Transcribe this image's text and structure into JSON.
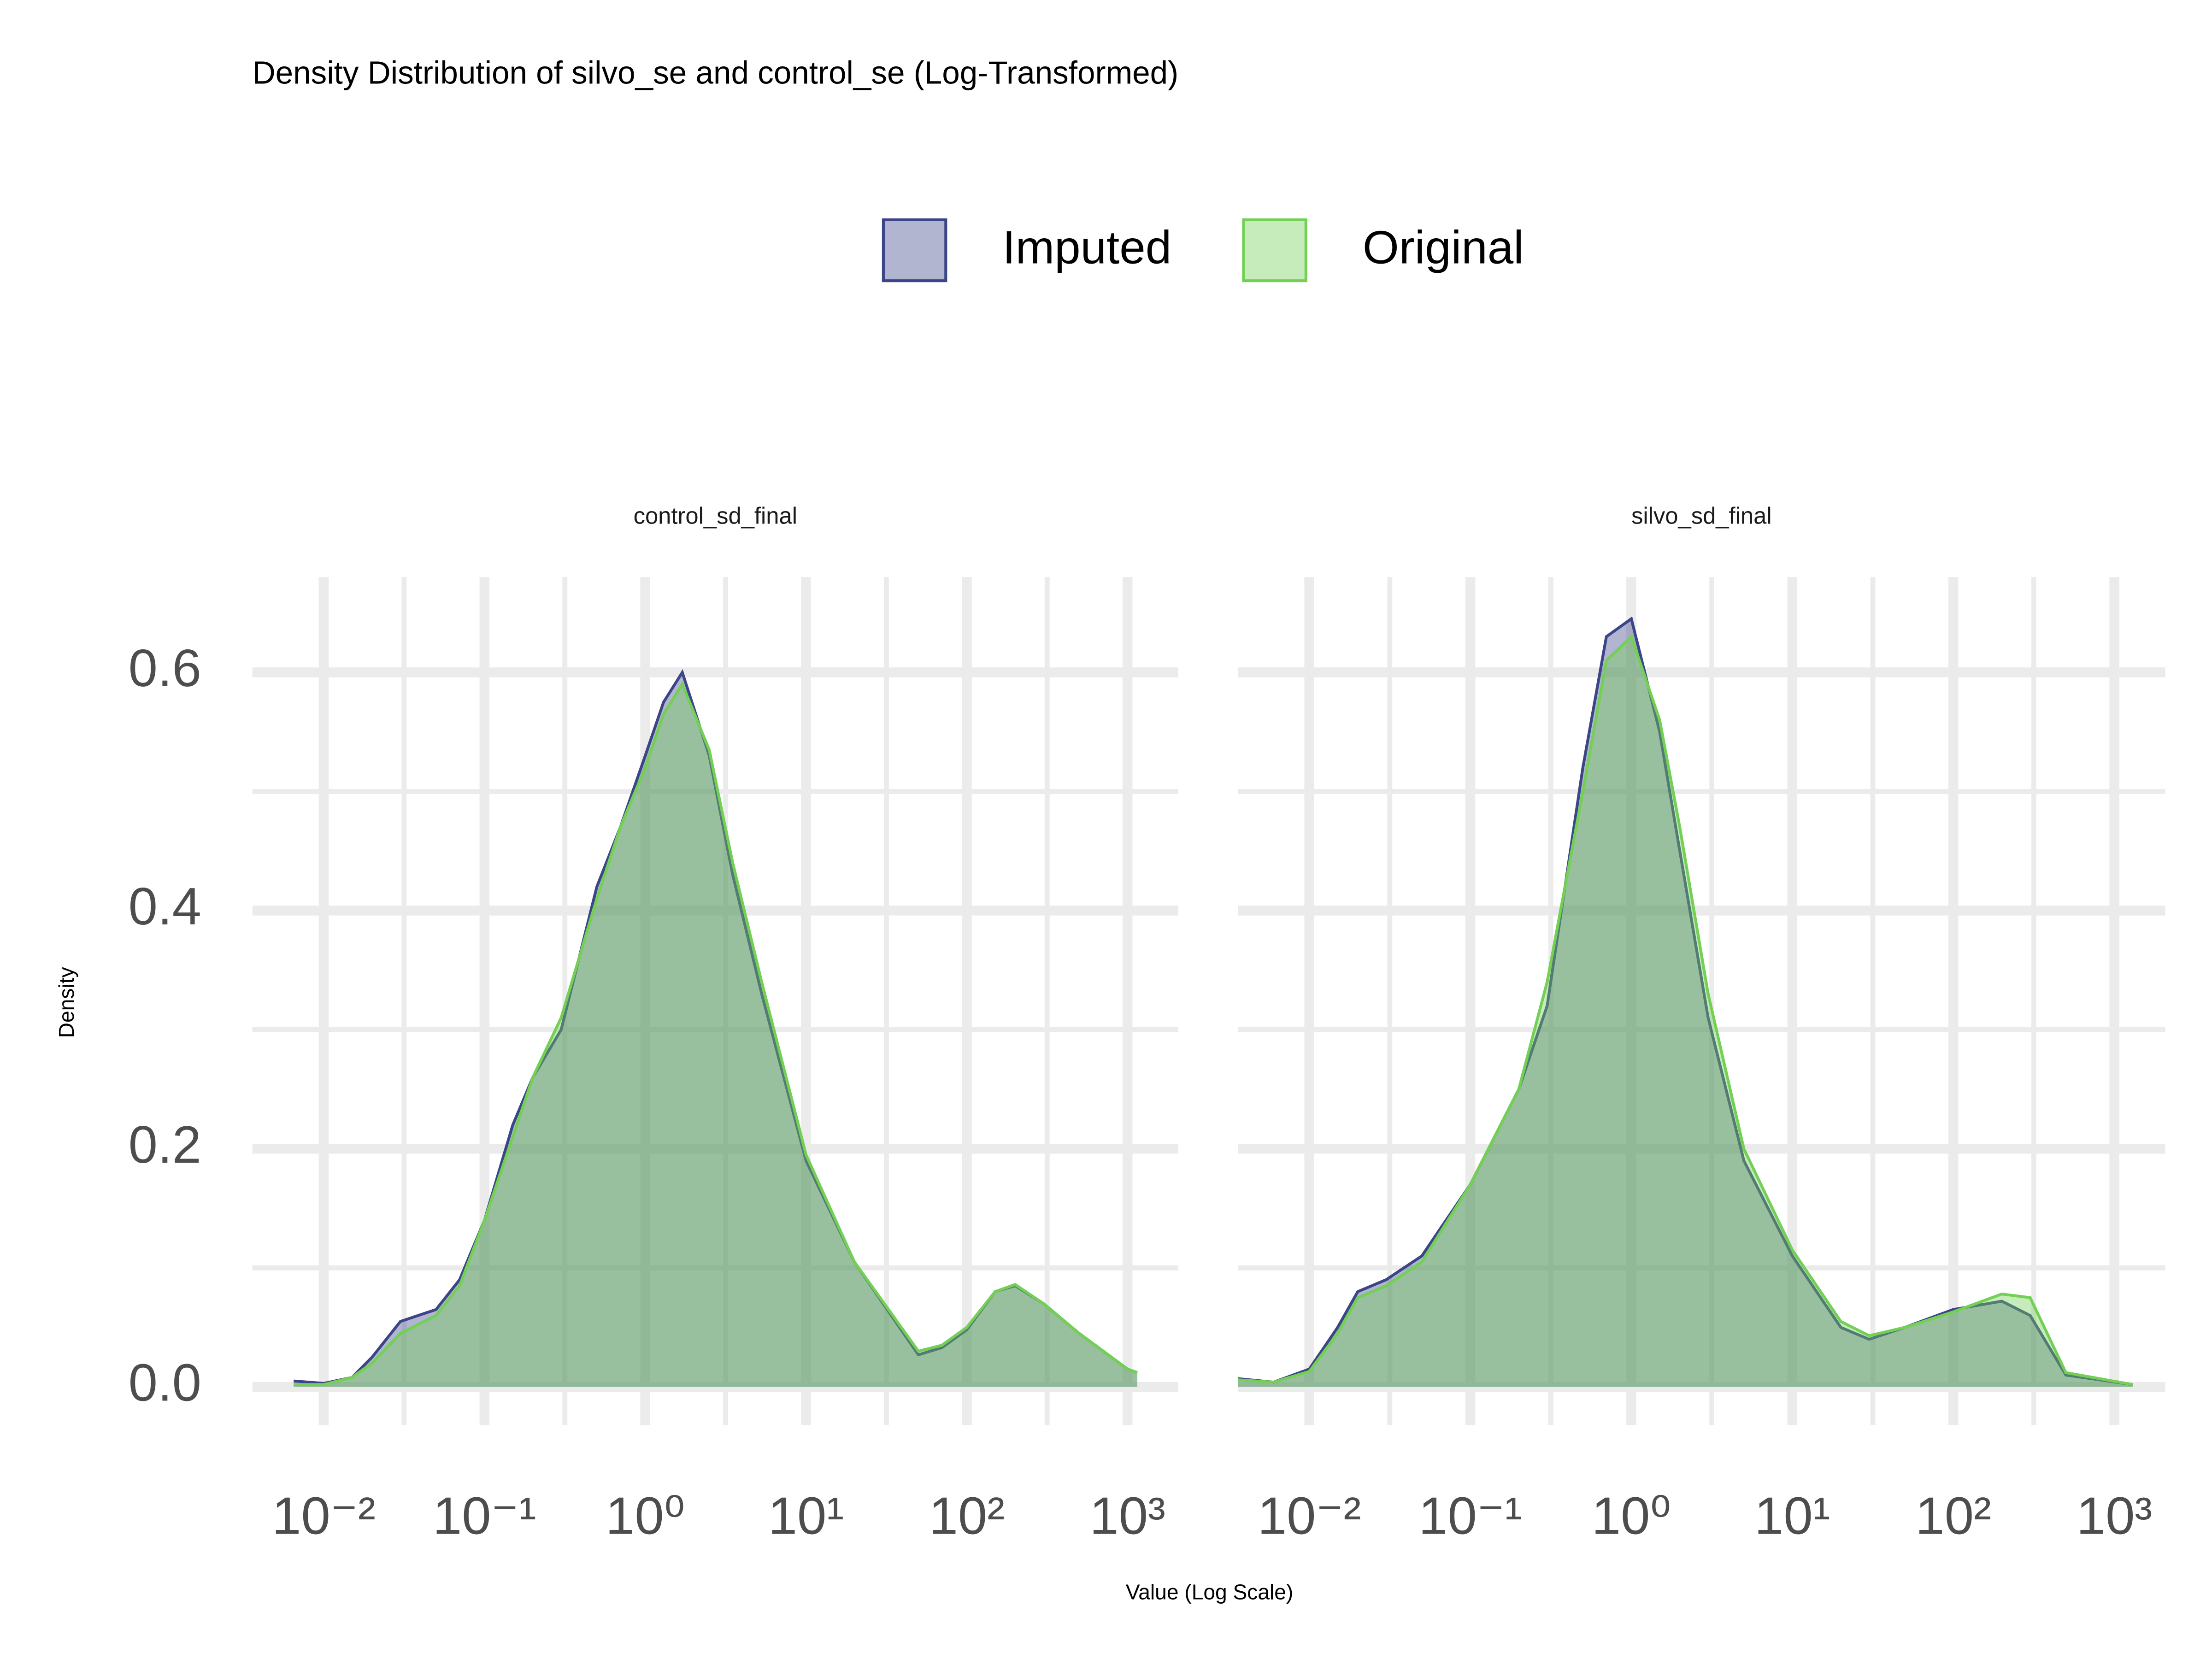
{
  "chart_data": {
    "type": "density",
    "title": "Density Distribution of silvo_se and control_se (Log-Transformed)",
    "x_label": "Value (Log Scale)",
    "y_label": "Density",
    "x_log": true,
    "grid": true,
    "legend_position": "top",
    "xlim": [
      0.0036,
      2070
    ],
    "ylim": [
      -0.032,
      0.68
    ],
    "xticks": [
      {
        "value": 0.01,
        "label": "10⁻²"
      },
      {
        "value": 0.1,
        "label": "10⁻¹"
      },
      {
        "value": 1,
        "label": "10⁰"
      },
      {
        "value": 10,
        "label": "10¹"
      },
      {
        "value": 100,
        "label": "10²"
      },
      {
        "value": 1000,
        "label": "10³"
      }
    ],
    "yticks": [
      {
        "value": 0,
        "label": "0.0"
      },
      0.2,
      0.4,
      0.6
    ],
    "facets": [
      {
        "title": "control_sd_final",
        "x": [
          0.0065,
          0.01,
          0.015,
          0.02,
          0.03,
          0.05,
          0.07,
          0.1,
          0.15,
          0.2,
          0.3,
          0.5,
          0.7,
          1,
          1.3,
          1.7,
          2.5,
          3.5,
          5.3,
          10,
          20,
          50,
          70,
          100,
          150,
          200,
          300,
          500,
          1000,
          1150
        ],
        "series": [
          {
            "name": "Imputed",
            "color": "#3c4587",
            "values": [
              0.005,
              0.003,
              0.008,
              0.025,
              0.055,
              0.065,
              0.09,
              0.14,
              0.22,
              0.26,
              0.3,
              0.42,
              0.47,
              0.53,
              0.575,
              0.6,
              0.53,
              0.43,
              0.33,
              0.19,
              0.105,
              0.027,
              0.033,
              0.048,
              0.08,
              0.085,
              0.07,
              0.045,
              0.015,
              0.012
            ]
          },
          {
            "name": "Original",
            "color": "#73d055",
            "values": [
              0.002,
              0.002,
              0.008,
              0.02,
              0.045,
              0.06,
              0.085,
              0.14,
              0.21,
              0.26,
              0.31,
              0.41,
              0.47,
              0.52,
              0.565,
              0.59,
              0.535,
              0.44,
              0.34,
              0.195,
              0.105,
              0.03,
              0.035,
              0.05,
              0.08,
              0.086,
              0.07,
              0.045,
              0.015,
              0.012
            ]
          }
        ]
      },
      {
        "title": "silvo_sd_final",
        "x": [
          0.0036,
          0.006,
          0.01,
          0.015,
          0.02,
          0.03,
          0.05,
          0.1,
          0.2,
          0.3,
          0.5,
          0.7,
          1,
          1.5,
          2,
          3,
          5,
          10,
          20,
          30,
          50,
          100,
          200,
          300,
          500,
          1300
        ],
        "series": [
          {
            "name": "Imputed",
            "color": "#3c4587",
            "values": [
              0.007,
              0.004,
              0.015,
              0.05,
              0.08,
              0.09,
              0.11,
              0.17,
              0.25,
              0.32,
              0.52,
              0.63,
              0.645,
              0.55,
              0.45,
              0.31,
              0.19,
              0.11,
              0.05,
              0.04,
              0.05,
              0.065,
              0.072,
              0.06,
              0.01,
              0.002
            ]
          },
          {
            "name": "Original",
            "color": "#73d055",
            "values": [
              0.006,
              0.004,
              0.013,
              0.045,
              0.075,
              0.085,
              0.105,
              0.17,
              0.25,
              0.34,
              0.5,
              0.61,
              0.63,
              0.56,
              0.47,
              0.33,
              0.2,
              0.115,
              0.055,
              0.043,
              0.05,
              0.063,
              0.078,
              0.075,
              0.012,
              0.002
            ]
          }
        ]
      }
    ]
  }
}
